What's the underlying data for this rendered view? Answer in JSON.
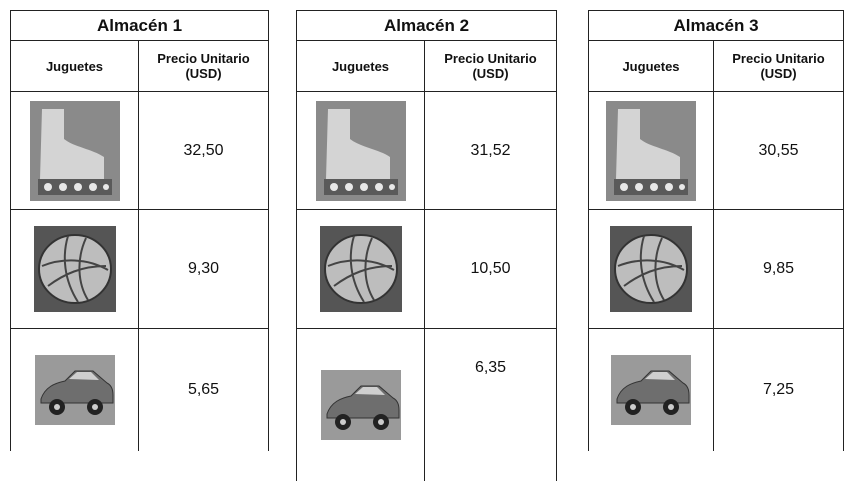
{
  "tables": [
    {
      "title": "Almacén 1",
      "headers": [
        "Juguetes",
        "Precio Unitario (USD)"
      ],
      "rows": [
        [
          "32,50"
        ],
        [
          "9,30"
        ],
        [
          "5,65"
        ]
      ]
    },
    {
      "title": "Almacén 2",
      "headers": [
        "Juguetes",
        "Precio Unitario (USD)"
      ],
      "rows": [
        [
          "31,52"
        ],
        [
          "10,50"
        ],
        [
          "6,35"
        ]
      ]
    },
    {
      "title": "Almacén 3",
      "headers": [
        "Juguetes",
        "Precio Unitario (USD)"
      ],
      "rows": [
        [
          "30,55"
        ],
        [
          "9,85"
        ],
        [
          "7,25"
        ]
      ]
    }
  ]
}
